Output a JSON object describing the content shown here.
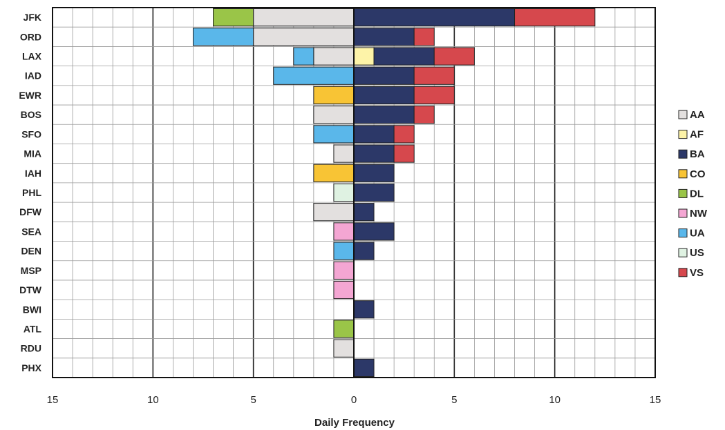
{
  "chart_data": {
    "type": "bar",
    "orientation": "horizontal-diverging",
    "title": "",
    "xlabel": "Daily Frequency",
    "ylabel": "",
    "xlim": [
      -15,
      15
    ],
    "x_ticks": [
      -15,
      -10,
      -5,
      0,
      5,
      10,
      15
    ],
    "x_tick_labels": [
      "15",
      "10",
      "5",
      "0",
      "5",
      "10",
      "15"
    ],
    "grid": true,
    "legend_position": "right",
    "categories": [
      "JFK",
      "ORD",
      "LAX",
      "IAD",
      "EWR",
      "BOS",
      "SFO",
      "MIA",
      "IAH",
      "PHL",
      "DFW",
      "SEA",
      "DEN",
      "MSP",
      "DTW",
      "BWI",
      "ATL",
      "RDU",
      "PHX"
    ],
    "series": [
      {
        "name": "AA",
        "color": "#e3e0df",
        "side": "left",
        "values": [
          5,
          5,
          2,
          0,
          0,
          2,
          0,
          1,
          0,
          0,
          2,
          0,
          0,
          0,
          0,
          0,
          0,
          1,
          0
        ]
      },
      {
        "name": "AF",
        "color": "#fdf3a8",
        "side": "right",
        "values": [
          0,
          0,
          1,
          0,
          0,
          0,
          0,
          0,
          0,
          0,
          0,
          0,
          0,
          0,
          0,
          0,
          0,
          0,
          0
        ]
      },
      {
        "name": "BA",
        "color": "#2c3868",
        "side": "right",
        "values": [
          8,
          3,
          3,
          3,
          3,
          3,
          2,
          2,
          2,
          2,
          1,
          2,
          1,
          0,
          0,
          1,
          0,
          0,
          1
        ]
      },
      {
        "name": "CO",
        "color": "#f8c435",
        "side": "left",
        "values": [
          0,
          0,
          0,
          0,
          2,
          0,
          0,
          0,
          2,
          0,
          0,
          0,
          0,
          0,
          0,
          0,
          0,
          0,
          0
        ]
      },
      {
        "name": "DL",
        "color": "#9ac548",
        "side": "left",
        "values": [
          2,
          0,
          0,
          0,
          0,
          0,
          0,
          0,
          0,
          0,
          0,
          0,
          0,
          0,
          0,
          0,
          1,
          0,
          0
        ]
      },
      {
        "name": "NW",
        "color": "#f4a6d3",
        "side": "left",
        "values": [
          0,
          0,
          0,
          0,
          0,
          0,
          0,
          0,
          0,
          0,
          0,
          1,
          0,
          1,
          1,
          0,
          0,
          0,
          0
        ]
      },
      {
        "name": "UA",
        "color": "#5ab7ea",
        "side": "left",
        "values": [
          0,
          3,
          1,
          4,
          0,
          0,
          2,
          0,
          0,
          0,
          0,
          0,
          1,
          0,
          0,
          0,
          0,
          0,
          0
        ]
      },
      {
        "name": "US",
        "color": "#dff2e2",
        "side": "left",
        "values": [
          0,
          0,
          0,
          0,
          0,
          0,
          0,
          0,
          0,
          1,
          0,
          0,
          0,
          0,
          0,
          0,
          0,
          0,
          0
        ]
      },
      {
        "name": "VS",
        "color": "#d6484d",
        "side": "right",
        "values": [
          4,
          1,
          2,
          2,
          2,
          1,
          1,
          1,
          0,
          0,
          0,
          0,
          0,
          0,
          0,
          0,
          0,
          0,
          0
        ]
      }
    ],
    "left_stack_order": [
      "AA",
      "UA",
      "CO",
      "DL",
      "NW",
      "US"
    ],
    "right_stack_order": [
      "AF",
      "BA",
      "VS"
    ],
    "legend_entries": [
      "AA",
      "AF",
      "BA",
      "CO",
      "DL",
      "NW",
      "UA",
      "US",
      "VS"
    ]
  }
}
